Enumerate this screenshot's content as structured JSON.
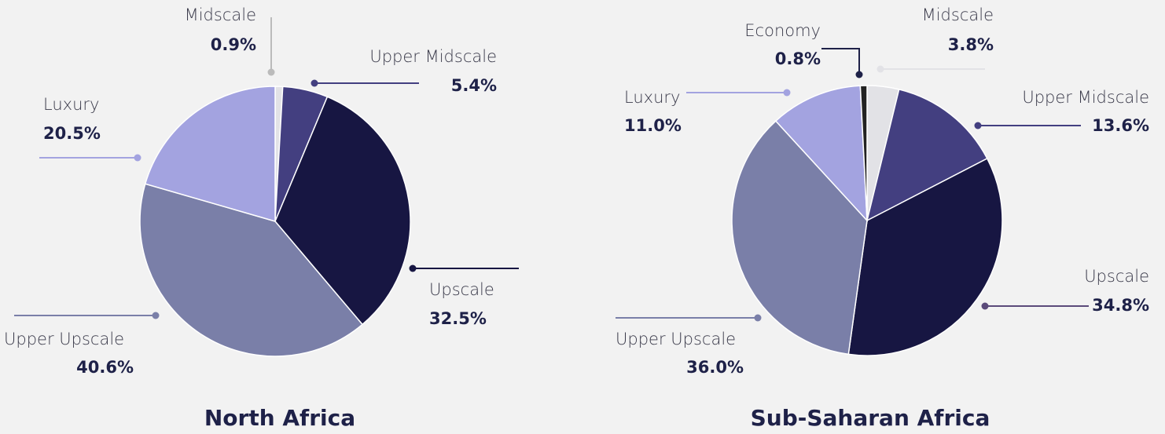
{
  "chart_data": [
    {
      "type": "pie",
      "title": "North Africa",
      "categories": [
        "Midscale",
        "Upper Midscale",
        "Upscale",
        "Upper Upscale",
        "Luxury"
      ],
      "values": [
        0.9,
        5.4,
        32.5,
        40.6,
        20.5
      ],
      "value_labels": [
        "0.9%",
        "5.4%",
        "32.5%",
        "40.6%",
        "20.5%"
      ],
      "colors": [
        "#e2e2e6",
        "#433f80",
        "#171642",
        "#7a7fa8",
        "#a3a3e0"
      ]
    },
    {
      "type": "pie",
      "title": "Sub-Saharan Africa",
      "categories": [
        "Midscale",
        "Upper Midscale",
        "Upscale",
        "Upper Upscale",
        "Luxury",
        "Economy"
      ],
      "values": [
        3.8,
        13.6,
        34.8,
        36.0,
        11.0,
        0.8
      ],
      "value_labels": [
        "3.8%",
        "13.6%",
        "34.8%",
        "36.0%",
        "11.0%",
        "0.8%"
      ],
      "colors": [
        "#e2e2e6",
        "#433f80",
        "#171642",
        "#7a7fa8",
        "#a3a3e0",
        "#222222"
      ]
    }
  ]
}
